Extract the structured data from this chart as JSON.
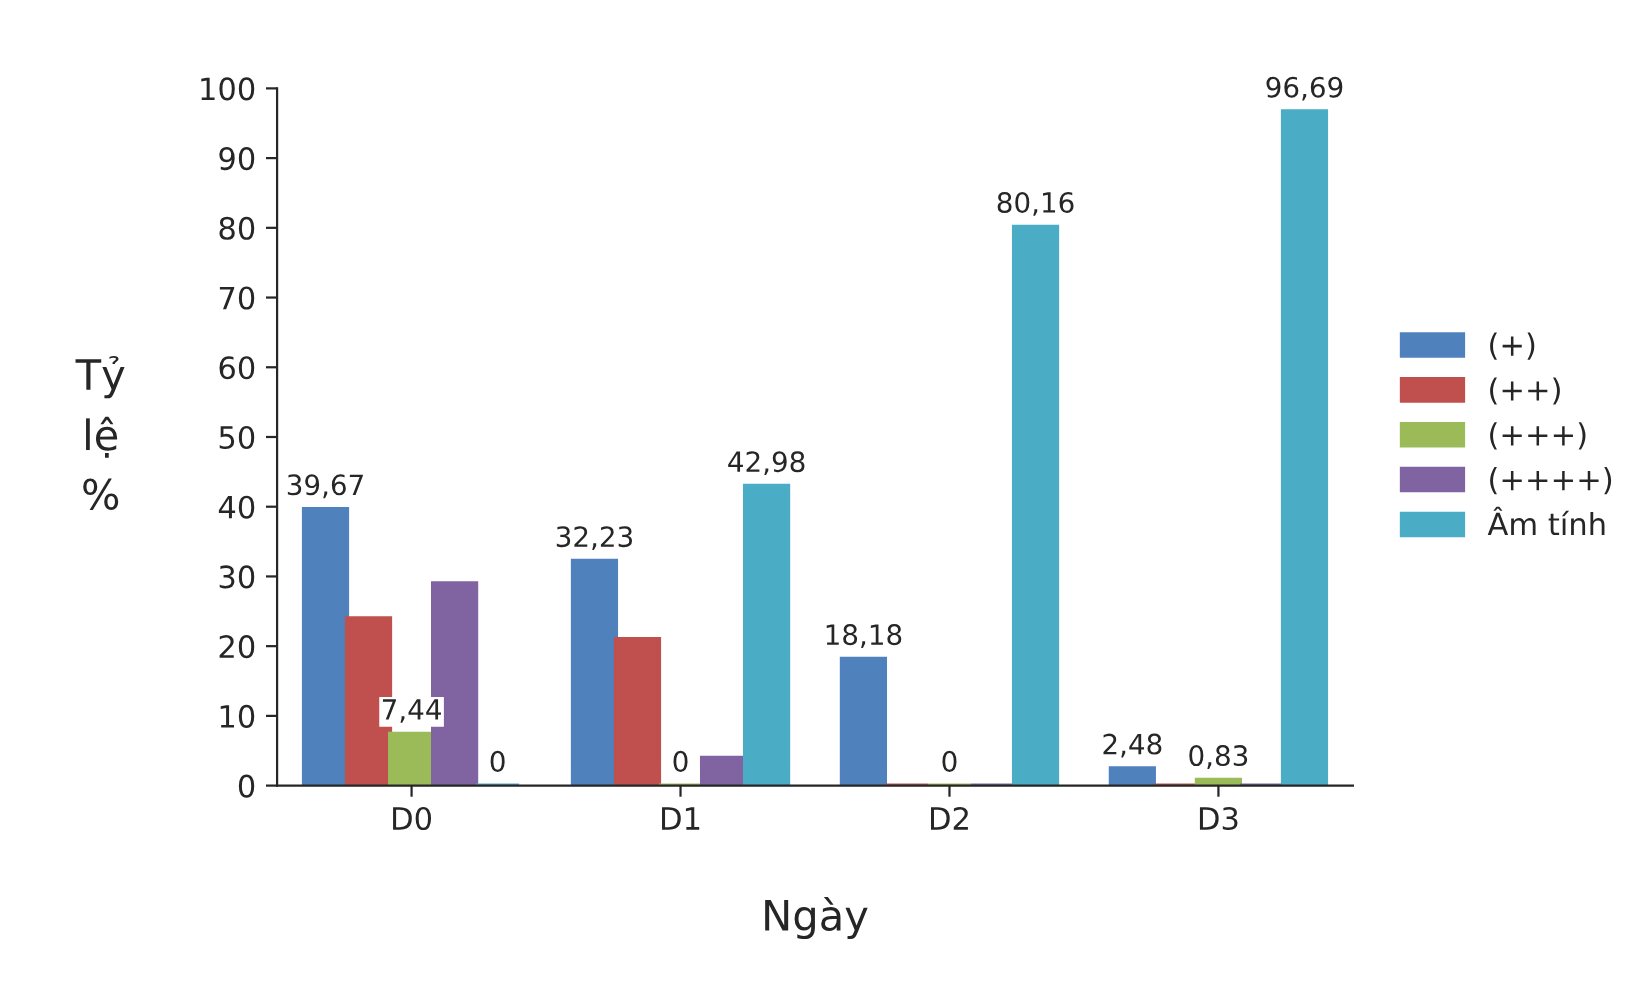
{
  "chart_data": {
    "type": "bar",
    "xlabel": "Ngày",
    "ylabel": "Tỷ\nlệ\n%",
    "categories": [
      "D0",
      "D1",
      "D2",
      "D3"
    ],
    "series": [
      {
        "name": "(+)",
        "color": "#4f81bd",
        "values": [
          39.67,
          32.23,
          18.18,
          2.48
        ],
        "value_labels": [
          "39,67",
          "32,23",
          "18,18",
          "2,48"
        ]
      },
      {
        "name": "(++)",
        "color": "#c0504d",
        "values": [
          24,
          21,
          0,
          0
        ],
        "value_labels": [
          null,
          null,
          null,
          null
        ]
      },
      {
        "name": "(+++)",
        "color": "#9bbb59",
        "values": [
          7.44,
          0,
          0,
          0.83
        ],
        "value_labels": [
          "7,44",
          "0",
          "0",
          "0,83"
        ]
      },
      {
        "name": "(++++)",
        "color": "#8064a2",
        "values": [
          29,
          4,
          0,
          0
        ],
        "value_labels": [
          null,
          null,
          null,
          null
        ]
      },
      {
        "name": "Âm tính",
        "color": "#4bacc6",
        "values": [
          0,
          42.98,
          80.16,
          96.69
        ],
        "value_labels": [
          "0",
          "42,98",
          "80,16",
          "96,69"
        ]
      }
    ],
    "ylim": [
      0,
      100
    ],
    "yticks": [
      0,
      10,
      20,
      30,
      40,
      50,
      60,
      70,
      80,
      90,
      100
    ],
    "grid": false,
    "legend": "right"
  }
}
